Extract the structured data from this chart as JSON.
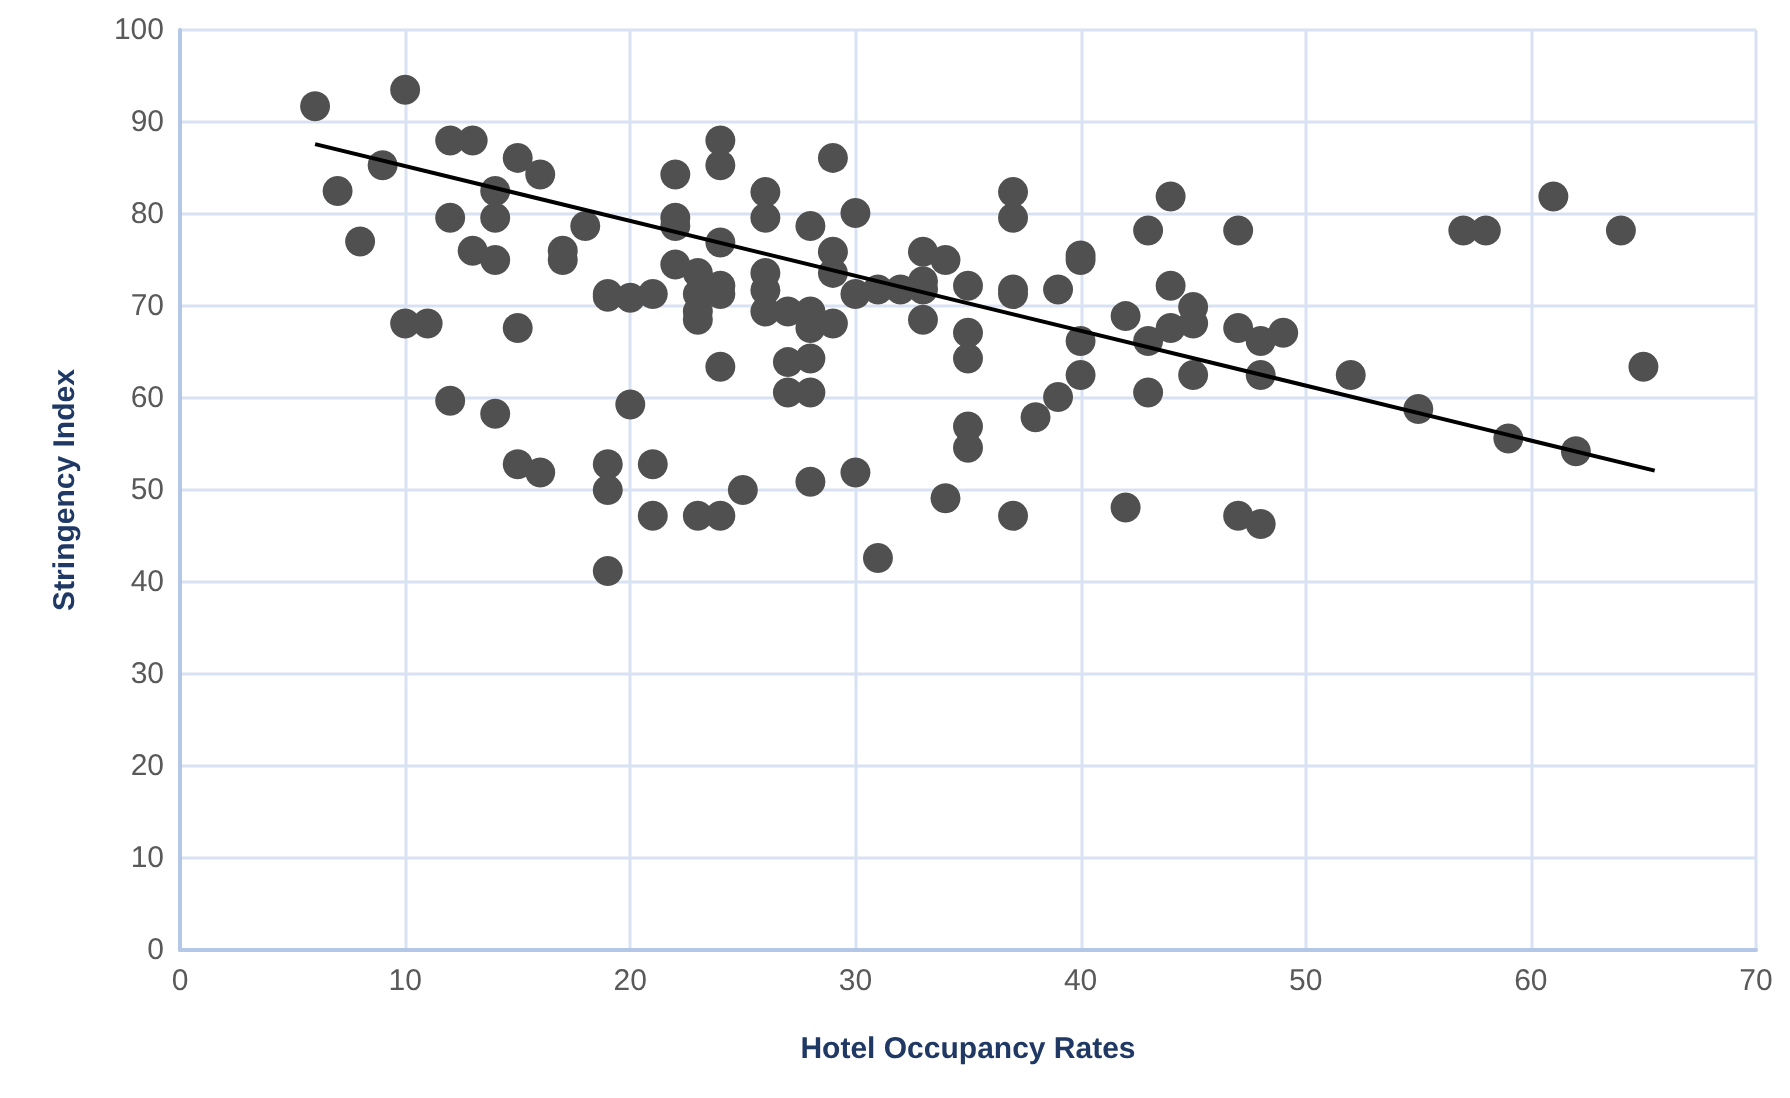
{
  "chart_data": {
    "type": "scatter",
    "xlabel": "Hotel Occupancy Rates",
    "ylabel": "Stringency Index",
    "xlim": [
      0,
      70
    ],
    "xticks": [
      0,
      10,
      20,
      30,
      40,
      50,
      60,
      70
    ],
    "ylim": [
      0,
      100
    ],
    "yticks": [
      0,
      10,
      20,
      30,
      40,
      50,
      60,
      70,
      80,
      90,
      100
    ],
    "grid": true,
    "marker": "circle",
    "series": [
      {
        "color": "#505050",
        "x": [
          6,
          7,
          8,
          9,
          10,
          10,
          11,
          12,
          12,
          12,
          13,
          13,
          14,
          14,
          14,
          14,
          15,
          15,
          15,
          16,
          16,
          17,
          17,
          18,
          19,
          19,
          19,
          19,
          19,
          20,
          20,
          21,
          21,
          21,
          22,
          22,
          22,
          22,
          23,
          23,
          23,
          23,
          23,
          24,
          24,
          24,
          24,
          24,
          24,
          24,
          25,
          26,
          26,
          26,
          26,
          26,
          27,
          27,
          27,
          28,
          28,
          28,
          28,
          28,
          28,
          29,
          29,
          29,
          29,
          30,
          30,
          30,
          31,
          31,
          32,
          33,
          33,
          33,
          33,
          34,
          34,
          35,
          35,
          35,
          35,
          35,
          37,
          37,
          37,
          37,
          37,
          38,
          39,
          39,
          40,
          40,
          40,
          40,
          42,
          42,
          43,
          43,
          43,
          44,
          44,
          44,
          45,
          45,
          45,
          47,
          47,
          47,
          48,
          48,
          48,
          49,
          52,
          55,
          57,
          58,
          59,
          61,
          62,
          64,
          65
        ],
        "values": [
          91.7,
          82.5,
          77,
          85.3,
          93.5,
          68.1,
          68.1,
          88,
          79.6,
          59.7,
          88,
          76,
          82.5,
          79.6,
          75,
          58.3,
          86.1,
          67.6,
          52.8,
          84.3,
          51.9,
          76,
          75,
          78.7,
          71.3,
          71,
          52.8,
          50,
          41.2,
          70.9,
          59.3,
          71.3,
          52.8,
          47.2,
          84.3,
          79.6,
          78.7,
          74.5,
          73.6,
          71.3,
          69.4,
          68.5,
          47.2,
          88,
          85.3,
          76.9,
          72.2,
          71.3,
          63.4,
          47.2,
          50,
          82.4,
          79.6,
          73.6,
          71.7,
          69.4,
          69.4,
          63.9,
          60.6,
          78.7,
          69.4,
          67.6,
          64.3,
          60.6,
          50.9,
          86.1,
          75.9,
          73.6,
          68.1,
          80.1,
          71.3,
          51.9,
          71.8,
          42.6,
          71.8,
          75.9,
          72.7,
          71.8,
          68.5,
          75,
          49.1,
          72.2,
          67.1,
          64.3,
          56.9,
          54.6,
          82.4,
          79.6,
          71.8,
          71.3,
          47.2,
          57.9,
          60.1,
          71.8,
          75.5,
          75,
          66.2,
          62.5,
          68.9,
          48.1,
          78.2,
          66.2,
          60.6,
          81.9,
          72.2,
          67.6,
          69.9,
          68.1,
          62.5,
          78.2,
          67.6,
          47.2,
          66.2,
          62.5,
          46.3,
          67.1,
          62.5,
          58.8,
          78.2,
          78.2,
          55.6,
          81.9,
          54.2,
          78.2,
          63.4
        ]
      },
      {
        "type": "line",
        "color": "#000000",
        "marker": "none",
        "line_style": "solid",
        "x": [
          6,
          65.5
        ],
        "values": [
          87.6,
          52.1
        ]
      }
    ]
  }
}
